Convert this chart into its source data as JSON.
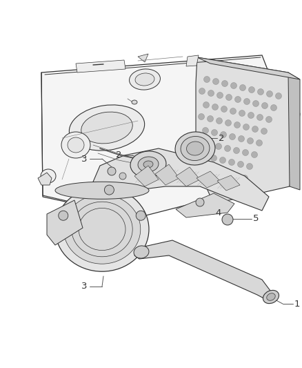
{
  "background_color": "#ffffff",
  "line_color": "#333333",
  "thin_line": "#555555",
  "very_thin": "#777777",
  "label_color": "#444444",
  "figsize": [
    4.38,
    5.33
  ],
  "dpi": 100,
  "plate_fill": "#f8f8f8",
  "grid_fill": "#c8c8c8",
  "part_fill": "#e8e8e8",
  "dark_part": "#d0d0d0",
  "shadow_fill": "#e0e0e0"
}
